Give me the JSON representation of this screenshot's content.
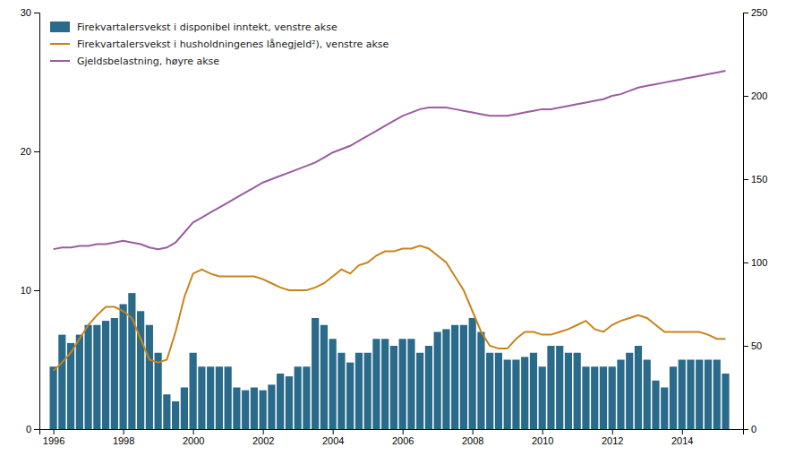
{
  "chart_data": {
    "type": "bar",
    "x": [
      1996.0,
      1996.25,
      1996.5,
      1996.75,
      1997.0,
      1997.25,
      1997.5,
      1997.75,
      1998.0,
      1998.25,
      1998.5,
      1998.75,
      1999.0,
      1999.25,
      1999.5,
      1999.75,
      2000.0,
      2000.25,
      2000.5,
      2000.75,
      2001.0,
      2001.25,
      2001.5,
      2001.75,
      2002.0,
      2002.25,
      2002.5,
      2002.75,
      2003.0,
      2003.25,
      2003.5,
      2003.75,
      2004.0,
      2004.25,
      2004.5,
      2004.75,
      2005.0,
      2005.25,
      2005.5,
      2005.75,
      2006.0,
      2006.25,
      2006.5,
      2006.75,
      2007.0,
      2007.25,
      2007.5,
      2007.75,
      2008.0,
      2008.25,
      2008.5,
      2008.75,
      2009.0,
      2009.25,
      2009.5,
      2009.75,
      2010.0,
      2010.25,
      2010.5,
      2010.75,
      2011.0,
      2011.25,
      2011.5,
      2011.75,
      2012.0,
      2012.25,
      2012.5,
      2012.75,
      2013.0,
      2013.25,
      2013.5,
      2013.75,
      2014.0,
      2014.25,
      2014.5,
      2014.75,
      2015.0,
      2015.25
    ],
    "series": [
      {
        "name": "Firekvartalersvekst i disponibel inntekt, venstre akse",
        "type": "bar",
        "color": "#2a6a8a",
        "values": [
          4.5,
          6.8,
          6.2,
          6.8,
          7.5,
          7.5,
          7.8,
          8.0,
          9.0,
          9.8,
          8.5,
          7.5,
          5.5,
          2.5,
          2.0,
          3.0,
          5.5,
          4.5,
          4.5,
          4.5,
          4.5,
          3.0,
          2.8,
          3.0,
          2.8,
          3.2,
          4.0,
          3.8,
          4.5,
          4.5,
          8.0,
          7.5,
          6.5,
          5.5,
          4.8,
          5.5,
          5.5,
          6.5,
          6.5,
          6.0,
          6.5,
          6.5,
          5.5,
          6.0,
          7.0,
          7.2,
          7.5,
          7.5,
          8.0,
          7.0,
          5.5,
          5.5,
          5.0,
          5.0,
          5.2,
          5.5,
          4.5,
          6.0,
          6.0,
          5.5,
          5.5,
          4.5,
          4.5,
          4.5,
          4.5,
          5.0,
          5.5,
          6.0,
          5.0,
          3.5,
          3.0,
          4.5,
          5.0,
          5.0,
          5.0,
          5.0,
          5.0,
          4.0
        ]
      },
      {
        "name": "Firekvartalersvekst i husholdningenes lånegjeld²), venstre akse",
        "type": "line",
        "color": "#c8841a",
        "values": [
          4.2,
          4.8,
          5.5,
          6.5,
          7.5,
          8.2,
          8.8,
          8.8,
          8.5,
          8.0,
          6.5,
          5.0,
          4.8,
          5.0,
          7.0,
          9.5,
          11.2,
          11.5,
          11.2,
          11.0,
          11.0,
          11.0,
          11.0,
          11.0,
          10.8,
          10.5,
          10.2,
          10.0,
          10.0,
          10.0,
          10.2,
          10.5,
          11.0,
          11.5,
          11.2,
          11.8,
          12.0,
          12.5,
          12.8,
          12.8,
          13.0,
          13.0,
          13.2,
          13.0,
          12.5,
          12.0,
          11.0,
          10.0,
          8.5,
          7.0,
          6.0,
          5.8,
          5.8,
          6.5,
          7.0,
          7.0,
          6.8,
          6.8,
          7.0,
          7.2,
          7.5,
          7.8,
          7.2,
          7.0,
          7.5,
          7.8,
          8.0,
          8.2,
          8.0,
          7.5,
          7.0,
          7.0,
          7.0,
          7.0,
          7.0,
          6.8,
          6.5,
          6.5
        ]
      },
      {
        "name": "Gjeldsbelastning, høyre akse",
        "type": "line",
        "color": "#9b5ca0",
        "axis": "y2",
        "values": [
          108,
          109,
          109,
          110,
          110,
          111,
          111,
          112,
          113,
          112,
          111,
          109,
          108,
          109,
          112,
          118,
          124,
          127,
          130,
          133,
          136,
          139,
          142,
          145,
          148,
          150,
          152,
          154,
          156,
          158,
          160,
          163,
          166,
          168,
          170,
          173,
          176,
          179,
          182,
          185,
          188,
          190,
          192,
          193,
          193,
          193,
          192,
          191,
          190,
          189,
          188,
          188,
          188,
          189,
          190,
          191,
          192,
          192,
          193,
          194,
          195,
          196,
          197,
          198,
          200,
          201,
          203,
          205,
          206,
          207,
          208,
          209,
          210,
          211,
          212,
          213,
          214,
          215
        ]
      }
    ],
    "xlim": [
      1995.6,
      2015.75
    ],
    "xticks": [
      1996,
      1998,
      2000,
      2002,
      2004,
      2006,
      2008,
      2010,
      2012,
      2014
    ],
    "ylim": [
      0,
      30
    ],
    "yticks": [
      0,
      10,
      20,
      30
    ],
    "y2lim": [
      0,
      250
    ],
    "y2ticks": [
      0,
      50,
      100,
      150,
      200,
      250
    ],
    "grid": false,
    "legend": "top-left"
  }
}
